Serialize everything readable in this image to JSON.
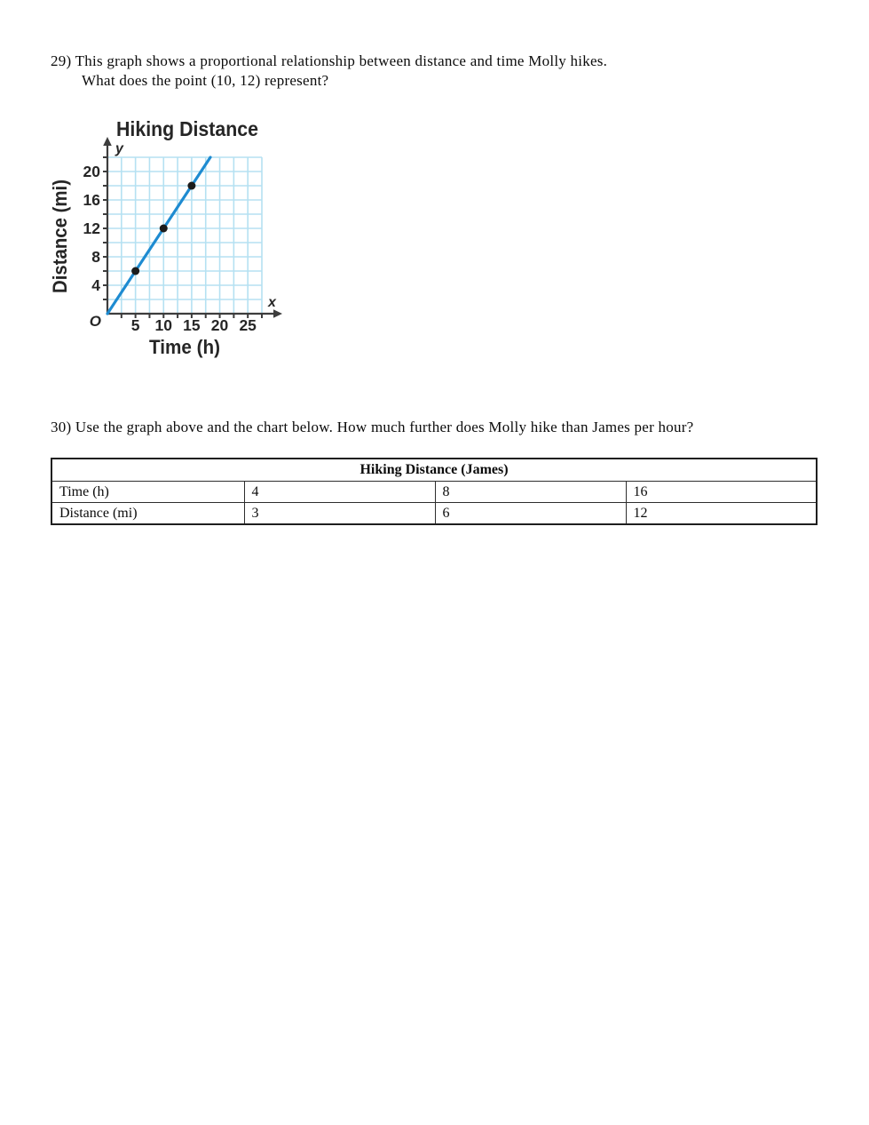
{
  "questions": {
    "q29_line1": "29) This graph shows a proportional relationship between distance and time Molly hikes.",
    "q29_line2": "What does the point (10, 12) represent?",
    "q30": "30) Use the graph above and the chart below. How much further does Molly hike than James per hour?"
  },
  "chart_data": {
    "type": "line",
    "title": "Hiking Distance",
    "xlabel": "Time (h)",
    "ylabel": "Distance (mi)",
    "x_letter": "x",
    "y_letter": "y",
    "origin_label": "O",
    "xlim": [
      0,
      27.5
    ],
    "ylim": [
      0,
      22
    ],
    "x_grid_step": 2.5,
    "y_grid_step": 2,
    "x_ticks": [
      5,
      10,
      15,
      20,
      25
    ],
    "y_ticks": [
      4,
      8,
      12,
      16,
      20
    ],
    "points": [
      [
        5,
        6
      ],
      [
        10,
        12
      ],
      [
        15,
        18
      ]
    ],
    "line_from": [
      0,
      0
    ],
    "line_to": [
      18.33,
      22
    ],
    "grid": true,
    "legend": "none",
    "colors": {
      "grid": "#b5e1f2",
      "line": "#1e8bd1",
      "point": "#1c1c1c",
      "axis": "#3d3d3d",
      "text": "#262626"
    }
  },
  "table": {
    "title": "Hiking Distance (James)",
    "rows": [
      {
        "label": "Time (h)",
        "values": [
          "4",
          "8",
          "16"
        ]
      },
      {
        "label": "Distance (mi)",
        "values": [
          "3",
          "6",
          "12"
        ]
      }
    ]
  }
}
